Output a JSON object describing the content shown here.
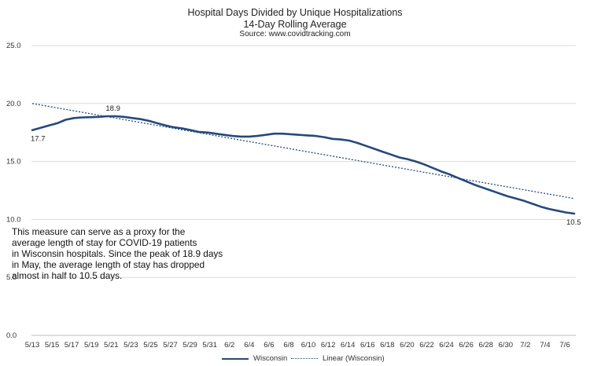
{
  "chart_data": {
    "type": "line",
    "title": "Hospital Days Divided by Unique Hospitalizations",
    "subtitle": "14-Day Rolling Average",
    "source": "Source: www.covidtracking.com",
    "ylim": [
      0,
      25
    ],
    "y_ticks": [
      "25.0",
      "20.0",
      "15.0",
      "10.0",
      "5.0",
      "0.0"
    ],
    "x_ticks": [
      "5/13",
      "5/15",
      "5/17",
      "5/19",
      "5/21",
      "5/23",
      "5/25",
      "5/27",
      "5/29",
      "5/31",
      "6/2",
      "6/4",
      "6/6",
      "6/8",
      "6/10",
      "6/12",
      "6/14",
      "6/16",
      "6/18",
      "6/20",
      "6/22",
      "6/24",
      "6/26",
      "6/28",
      "6/30",
      "7/2",
      "7/4",
      "7/6"
    ],
    "grid": "horizontal",
    "legend_position": "bottom",
    "series": [
      {
        "name": "Wisconsin",
        "color": "#26497a",
        "style": "solid",
        "values": [
          17.7,
          17.9,
          18.1,
          18.3,
          18.6,
          18.75,
          18.8,
          18.82,
          18.85,
          18.9,
          18.9,
          18.85,
          18.75,
          18.65,
          18.5,
          18.3,
          18.1,
          17.95,
          17.85,
          17.7,
          17.55,
          17.5,
          17.4,
          17.3,
          17.2,
          17.15,
          17.15,
          17.2,
          17.3,
          17.4,
          17.4,
          17.35,
          17.3,
          17.25,
          17.2,
          17.1,
          16.95,
          16.9,
          16.8,
          16.6,
          16.35,
          16.1,
          15.85,
          15.6,
          15.35,
          15.2,
          15.0,
          14.75,
          14.45,
          14.15,
          13.9,
          13.6,
          13.3,
          13.0,
          12.75,
          12.5,
          12.25,
          12.0,
          11.8,
          11.6,
          11.35,
          11.1,
          10.9,
          10.75,
          10.6,
          10.5
        ]
      },
      {
        "name": "Linear (Wisconsin)",
        "color": "#26497a",
        "style": "dotted",
        "values": [
          20.0,
          11.8
        ]
      }
    ],
    "data_labels": [
      {
        "text": "17.7",
        "index": 0
      },
      {
        "text": "18.9",
        "index": 9
      },
      {
        "text": "10.5",
        "index": 65
      }
    ]
  },
  "annotation": [
    "This measure can serve as a proxy for the",
    "average length of stay for COVID-19 patients",
    "in Wisconsin hospitals. Since the peak of 18.9 days",
    "in May, the average length of stay has dropped",
    "almost in half to 10.5 days."
  ]
}
